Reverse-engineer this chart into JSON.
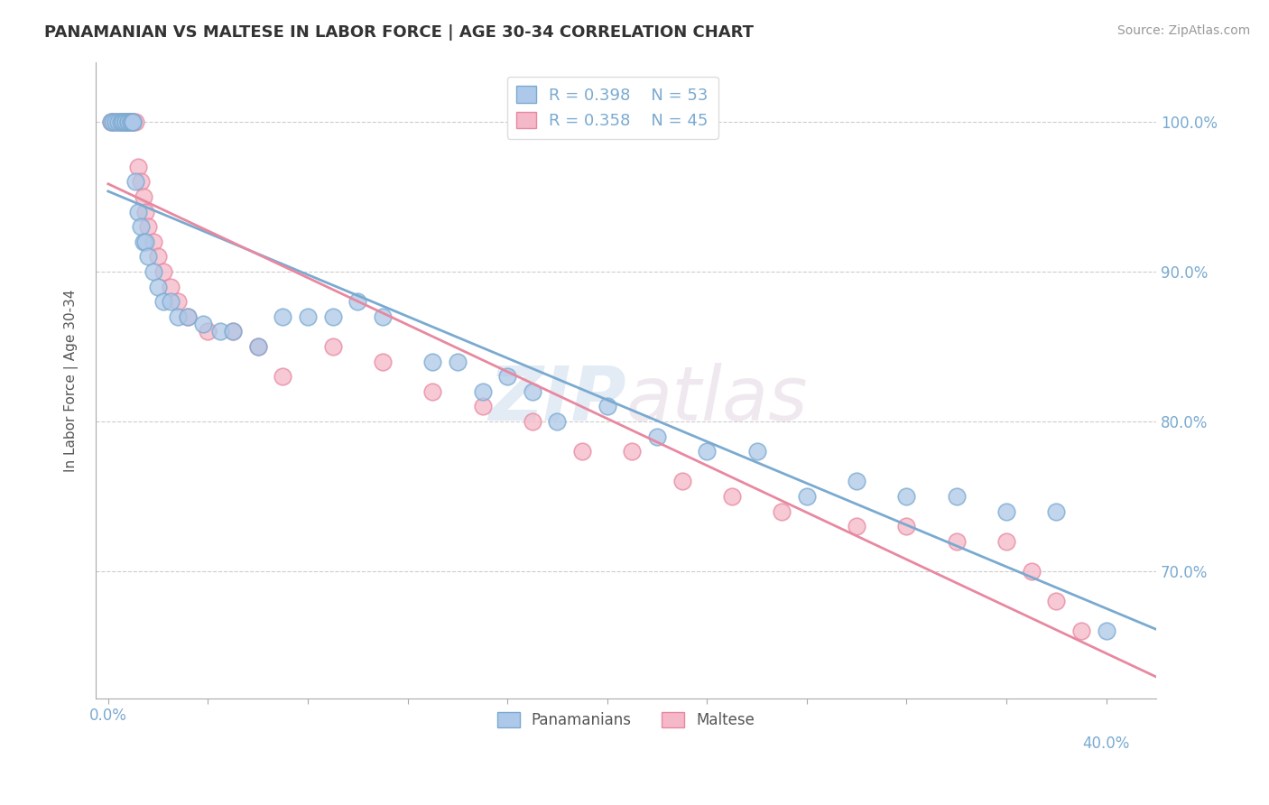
{
  "title": "PANAMANIAN VS MALTESE IN LABOR FORCE | AGE 30-34 CORRELATION CHART",
  "source": "Source: ZipAtlas.com",
  "ylabel": "In Labor Force | Age 30-34",
  "xlim": [
    -0.005,
    0.42
  ],
  "ylim": [
    0.615,
    1.04
  ],
  "yticks": [
    0.7,
    0.8,
    0.9,
    1.0
  ],
  "yticklabels": [
    "70.0%",
    "80.0%",
    "90.0%",
    "100.0%"
  ],
  "xtick_right_label": "40.0%",
  "grid_color": "#cccccc",
  "background_color": "#ffffff",
  "panamanian_color": "#adc8e8",
  "maltese_color": "#f4b8c8",
  "panamanian_edge_color": "#7aaad0",
  "maltese_edge_color": "#e888a0",
  "panamanian_line_color": "#7aaad0",
  "maltese_line_color": "#e888a0",
  "tick_label_color": "#7aaad0",
  "legend_box_blue": "#adc8e8",
  "legend_box_pink": "#f4b8c8",
  "R_pan": 0.398,
  "N_pan": 53,
  "R_malt": 0.358,
  "N_malt": 45,
  "watermark_zip": "ZIP",
  "watermark_atlas": "atlas",
  "panamanian_x": [
    0.001,
    0.002,
    0.003,
    0.004,
    0.005,
    0.006,
    0.006,
    0.007,
    0.007,
    0.008,
    0.008,
    0.009,
    0.009,
    0.01,
    0.01,
    0.011,
    0.012,
    0.013,
    0.014,
    0.015,
    0.016,
    0.018,
    0.02,
    0.022,
    0.025,
    0.028,
    0.032,
    0.038,
    0.045,
    0.05,
    0.06,
    0.07,
    0.08,
    0.09,
    0.1,
    0.11,
    0.13,
    0.14,
    0.15,
    0.16,
    0.17,
    0.18,
    0.2,
    0.22,
    0.24,
    0.26,
    0.28,
    0.3,
    0.32,
    0.34,
    0.36,
    0.38,
    0.4
  ],
  "panamanian_y": [
    1.0,
    1.0,
    1.0,
    1.0,
    1.0,
    1.0,
    1.0,
    1.0,
    1.0,
    1.0,
    1.0,
    1.0,
    1.0,
    1.0,
    1.0,
    0.96,
    0.94,
    0.93,
    0.92,
    0.92,
    0.91,
    0.9,
    0.89,
    0.88,
    0.88,
    0.87,
    0.87,
    0.865,
    0.86,
    0.86,
    0.85,
    0.87,
    0.87,
    0.87,
    0.88,
    0.87,
    0.84,
    0.84,
    0.82,
    0.83,
    0.82,
    0.8,
    0.81,
    0.79,
    0.78,
    0.78,
    0.75,
    0.76,
    0.75,
    0.75,
    0.74,
    0.74,
    0.66
  ],
  "maltese_x": [
    0.001,
    0.002,
    0.003,
    0.004,
    0.005,
    0.006,
    0.007,
    0.008,
    0.008,
    0.009,
    0.01,
    0.01,
    0.011,
    0.012,
    0.013,
    0.014,
    0.015,
    0.016,
    0.018,
    0.02,
    0.022,
    0.025,
    0.028,
    0.032,
    0.04,
    0.05,
    0.06,
    0.07,
    0.09,
    0.11,
    0.13,
    0.15,
    0.17,
    0.19,
    0.21,
    0.23,
    0.25,
    0.27,
    0.3,
    0.32,
    0.34,
    0.36,
    0.37,
    0.38,
    0.39
  ],
  "maltese_y": [
    1.0,
    1.0,
    1.0,
    1.0,
    1.0,
    1.0,
    1.0,
    1.0,
    1.0,
    1.0,
    1.0,
    1.0,
    1.0,
    0.97,
    0.96,
    0.95,
    0.94,
    0.93,
    0.92,
    0.91,
    0.9,
    0.89,
    0.88,
    0.87,
    0.86,
    0.86,
    0.85,
    0.83,
    0.85,
    0.84,
    0.82,
    0.81,
    0.8,
    0.78,
    0.78,
    0.76,
    0.75,
    0.74,
    0.73,
    0.73,
    0.72,
    0.72,
    0.7,
    0.68,
    0.66
  ]
}
